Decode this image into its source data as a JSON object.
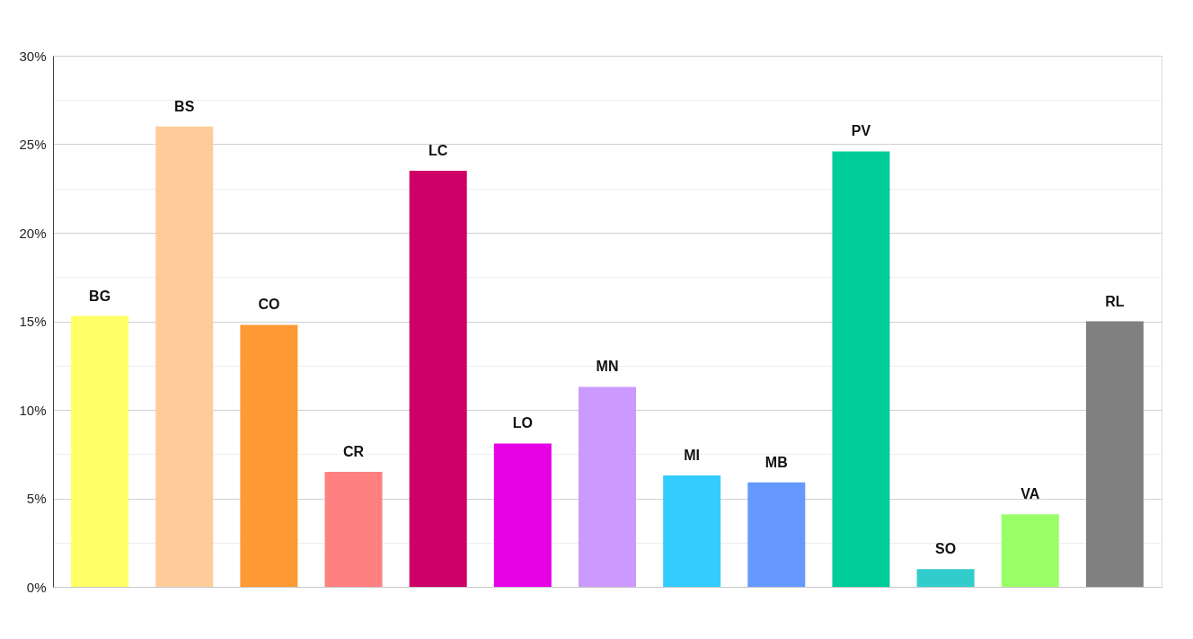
{
  "chart_data": {
    "type": "bar",
    "categories": [
      "BG",
      "BS",
      "CO",
      "CR",
      "LC",
      "LO",
      "MN",
      "MI",
      "MB",
      "PV",
      "SO",
      "VA",
      "RL"
    ],
    "values": [
      15.3,
      26.0,
      14.8,
      6.5,
      23.5,
      8.1,
      11.3,
      6.3,
      5.9,
      24.6,
      1.0,
      4.1,
      15.0
    ],
    "colors": [
      "#ffff66",
      "#ffcc99",
      "#ff9933",
      "#ff8080",
      "#cc0066",
      "#e600e6",
      "#cc99ff",
      "#33ccff",
      "#6699ff",
      "#00cc99",
      "#33cccc",
      "#99ff66",
      "#808080"
    ],
    "ylim": [
      0,
      30
    ],
    "yticks": [
      {
        "value": 0,
        "label": "0%"
      },
      {
        "value": 2.5,
        "label": null
      },
      {
        "value": 5,
        "label": "5%"
      },
      {
        "value": 7.5,
        "label": null
      },
      {
        "value": 10,
        "label": "10%"
      },
      {
        "value": 12.5,
        "label": null
      },
      {
        "value": 15,
        "label": "15%"
      },
      {
        "value": 17.5,
        "label": null
      },
      {
        "value": 20,
        "label": "20%"
      },
      {
        "value": 22.5,
        "label": null
      },
      {
        "value": 25,
        "label": "25%"
      },
      {
        "value": 27.5,
        "label": null
      },
      {
        "value": 30,
        "label": "30%"
      }
    ],
    "grid": "y",
    "tick_labels": "y"
  }
}
